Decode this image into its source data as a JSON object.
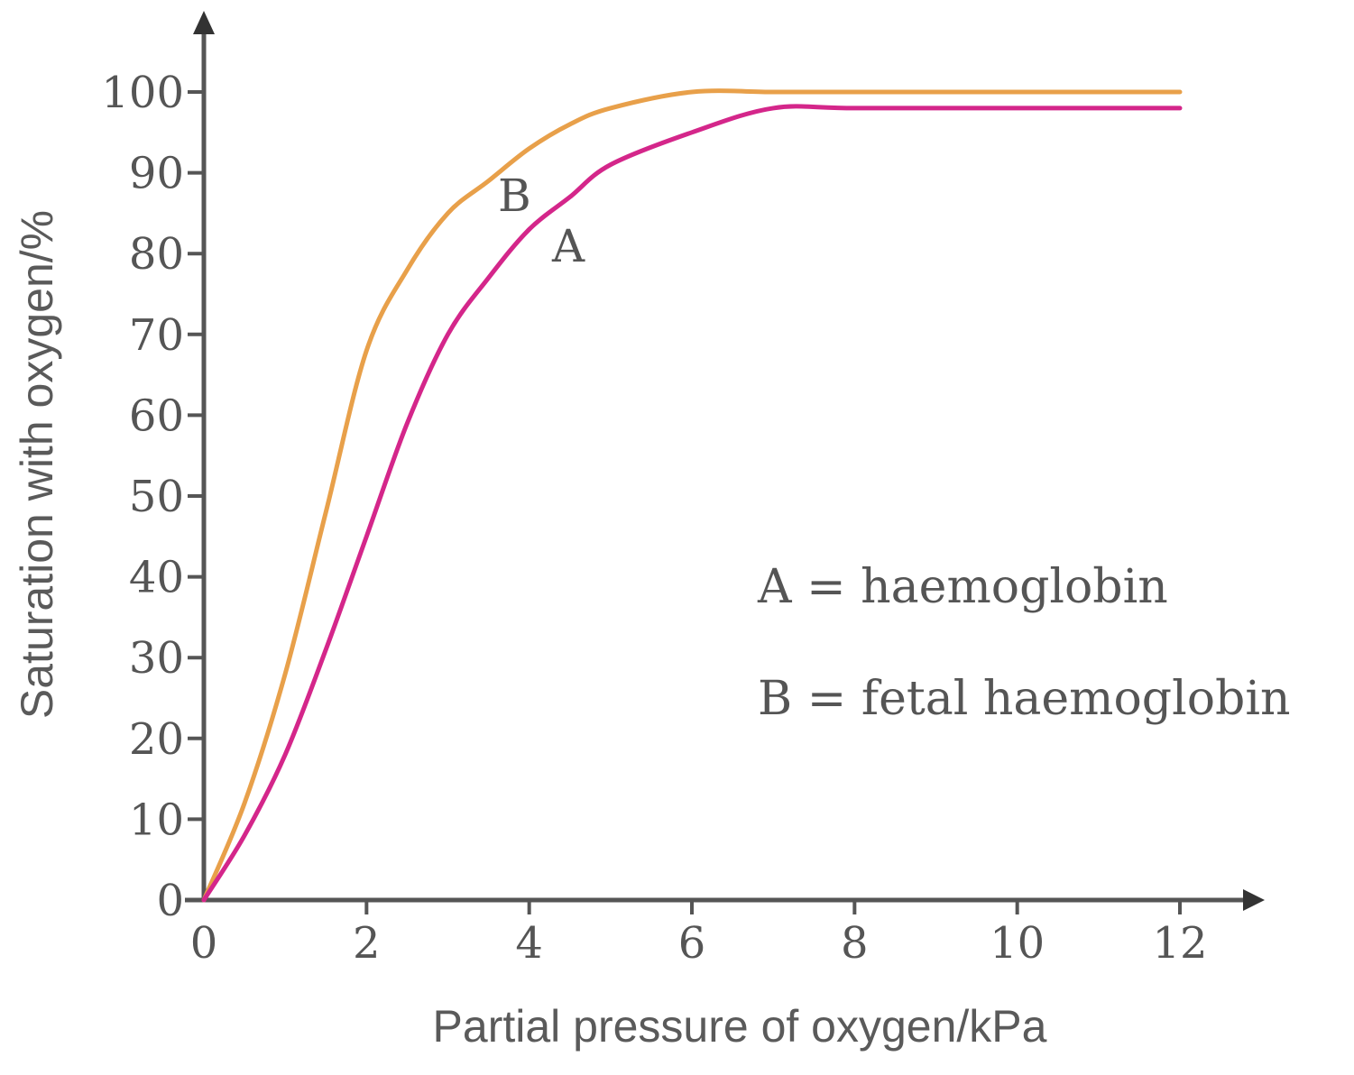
{
  "chart_data": {
    "type": "line",
    "title": "",
    "xlabel": "Partial pressure of oxygen/kPa",
    "ylabel": "Saturation with oxygen/%",
    "xlim": [
      0,
      12
    ],
    "ylim": [
      0,
      100
    ],
    "x_ticks": [
      0,
      2,
      4,
      6,
      8,
      10,
      12
    ],
    "y_ticks": [
      0,
      10,
      20,
      30,
      40,
      50,
      60,
      70,
      80,
      90,
      100
    ],
    "grid": false,
    "legend_position": "center-right (inside plot)",
    "series": [
      {
        "name": "A",
        "label": "haemoglobin",
        "color": "#d4268a",
        "x": [
          0,
          0.5,
          1,
          1.5,
          2,
          2.5,
          3,
          3.5,
          4,
          4.5,
          5,
          6,
          7,
          8,
          10,
          12
        ],
        "y": [
          0,
          8,
          18,
          31,
          45,
          59,
          70,
          77,
          83,
          87,
          91,
          95,
          98,
          98,
          98,
          98
        ]
      },
      {
        "name": "B",
        "label": "fetal haemoglobin",
        "color": "#e8a04a",
        "x": [
          0,
          0.5,
          1,
          1.5,
          2,
          2.5,
          3,
          3.5,
          4,
          4.5,
          5,
          6,
          7,
          8,
          10,
          12
        ],
        "y": [
          0,
          12,
          28,
          48,
          68,
          78,
          85,
          89,
          93,
          96,
          98,
          100,
          100,
          100,
          100,
          100
        ]
      }
    ],
    "annotations": [
      {
        "text": "B",
        "x": 3.9,
        "y": 88
      },
      {
        "text": "A",
        "x": 4.6,
        "y": 81
      }
    ],
    "legend": [
      {
        "key": "A",
        "equals": "=",
        "text": "haemoglobin"
      },
      {
        "key": "B",
        "equals": "=",
        "text": "fetal haemoglobin"
      }
    ]
  },
  "axes": {
    "x_title": "Partial pressure of oxygen/kPa",
    "y_title": "Saturation with oxygen/%",
    "x_ticks": [
      "0",
      "2",
      "4",
      "6",
      "8",
      "10",
      "12"
    ],
    "y_ticks": [
      "0",
      "10",
      "20",
      "30",
      "40",
      "50",
      "60",
      "70",
      "80",
      "90",
      "100"
    ]
  },
  "labels": {
    "curve_a": "A",
    "curve_b": "B"
  },
  "legend": {
    "line_a": "A = haemoglobin",
    "line_b": "B = fetal haemoglobin"
  },
  "colors": {
    "axis": "#555555",
    "haemoglobin": "#d4268a",
    "fetal_haemoglobin": "#e8a04a"
  }
}
